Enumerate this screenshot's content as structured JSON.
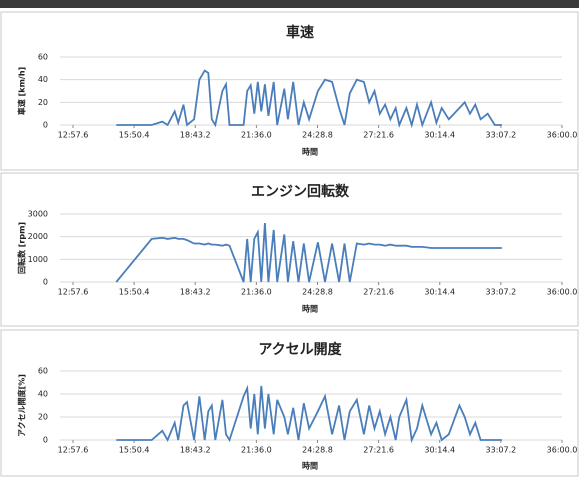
{
  "chart_data": [
    {
      "type": "line",
      "title": "車速",
      "x_label": "時間",
      "y_label": "車速 [km/h]",
      "xlim": [
        777.6,
        2160
      ],
      "ylim": [
        0,
        60
      ],
      "yticks": [
        0,
        20,
        40,
        60
      ],
      "grid": true,
      "xticks": [
        {
          "value": 777.6,
          "label": "12:57.6"
        },
        {
          "value": 950.4,
          "label": "15:50.4"
        },
        {
          "value": 1123.2,
          "label": "18:43.2"
        },
        {
          "value": 1296,
          "label": "21:36.0"
        },
        {
          "value": 1468.8,
          "label": "24:28.8"
        },
        {
          "value": 1641.6,
          "label": "27:21.6"
        },
        {
          "value": 1814.4,
          "label": "30:14.4"
        },
        {
          "value": 1987.2,
          "label": "33:07.2"
        },
        {
          "value": 2160,
          "label": "36:00.0"
        }
      ],
      "x": [
        900,
        1000,
        1030,
        1045,
        1065,
        1075,
        1090,
        1100,
        1120,
        1135,
        1150,
        1160,
        1170,
        1180,
        1200,
        1210,
        1220,
        1260,
        1270,
        1280,
        1290,
        1300,
        1310,
        1320,
        1330,
        1345,
        1355,
        1375,
        1385,
        1400,
        1415,
        1430,
        1445,
        1470,
        1490,
        1510,
        1530,
        1545,
        1560,
        1580,
        1600,
        1615,
        1630,
        1645,
        1660,
        1675,
        1690,
        1700,
        1720,
        1735,
        1750,
        1765,
        1790,
        1805,
        1820,
        1840,
        1870,
        1885,
        1900,
        1915,
        1930,
        1950,
        1970,
        1990
      ],
      "series": [
        {
          "color": "#4a7ebb",
          "values": [
            0,
            0,
            3,
            0,
            12,
            2,
            18,
            0,
            5,
            40,
            48,
            46,
            5,
            0,
            30,
            36,
            0,
            0,
            30,
            35,
            10,
            38,
            12,
            36,
            8,
            38,
            0,
            32,
            5,
            38,
            0,
            20,
            5,
            30,
            40,
            38,
            15,
            0,
            28,
            40,
            38,
            20,
            30,
            10,
            18,
            5,
            15,
            0,
            15,
            0,
            18,
            0,
            20,
            2,
            15,
            5,
            15,
            20,
            10,
            18,
            5,
            10,
            0,
            0
          ]
        }
      ]
    },
    {
      "type": "line",
      "title": "エンジン回転数",
      "x_label": "時間",
      "y_label": "回転数 [rpm]",
      "xlim": [
        777.6,
        2160
      ],
      "ylim": [
        0,
        3000
      ],
      "yticks": [
        0,
        1000,
        2000,
        3000
      ],
      "grid": true,
      "xticks": [
        {
          "value": 777.6,
          "label": "12:57.6"
        },
        {
          "value": 950.4,
          "label": "15:50.4"
        },
        {
          "value": 1123.2,
          "label": "18:43.2"
        },
        {
          "value": 1296,
          "label": "21:36.0"
        },
        {
          "value": 1468.8,
          "label": "24:28.8"
        },
        {
          "value": 1641.6,
          "label": "27:21.6"
        },
        {
          "value": 1814.4,
          "label": "30:14.4"
        },
        {
          "value": 1987.2,
          "label": "33:07.2"
        },
        {
          "value": 2160,
          "label": "36:00.0"
        }
      ],
      "x": [
        900,
        1000,
        1030,
        1045,
        1065,
        1075,
        1090,
        1100,
        1120,
        1135,
        1150,
        1160,
        1170,
        1180,
        1200,
        1210,
        1220,
        1260,
        1270,
        1280,
        1290,
        1300,
        1310,
        1320,
        1330,
        1345,
        1355,
        1375,
        1385,
        1400,
        1415,
        1430,
        1445,
        1470,
        1490,
        1510,
        1530,
        1545,
        1560,
        1580,
        1600,
        1615,
        1630,
        1645,
        1660,
        1675,
        1690,
        1700,
        1720,
        1735,
        1750,
        1765,
        1790,
        1805,
        1820,
        1840,
        1870,
        1885,
        1900,
        1915,
        1930,
        1950,
        1970,
        1990
      ],
      "series": [
        {
          "color": "#4a7ebb",
          "values": [
            0,
            1900,
            1950,
            1900,
            1950,
            1900,
            1900,
            1850,
            1700,
            1700,
            1650,
            1700,
            1650,
            1650,
            1600,
            1650,
            1600,
            0,
            1900,
            0,
            1900,
            2200,
            0,
            2600,
            0,
            2300,
            0,
            2100,
            0,
            1800,
            0,
            1700,
            0,
            1750,
            0,
            1700,
            0,
            1700,
            0,
            1700,
            1650,
            1700,
            1650,
            1650,
            1600,
            1650,
            1600,
            1600,
            1600,
            1550,
            1550,
            1550,
            1500,
            1500,
            1500,
            1500,
            1500,
            1500,
            1500,
            1500,
            1500,
            1500,
            1500,
            1500
          ]
        }
      ]
    },
    {
      "type": "line",
      "title": "アクセル開度",
      "x_label": "時間",
      "y_label": "アクセル開度[%]",
      "xlim": [
        777.6,
        2160
      ],
      "ylim": [
        0,
        60
      ],
      "yticks": [
        0,
        20,
        40,
        60
      ],
      "grid": true,
      "xticks": [
        {
          "value": 777.6,
          "label": "12:57.6"
        },
        {
          "value": 950.4,
          "label": "15:50.4"
        },
        {
          "value": 1123.2,
          "label": "18:43.2"
        },
        {
          "value": 1296,
          "label": "21:36.0"
        },
        {
          "value": 1468.8,
          "label": "24:28.8"
        },
        {
          "value": 1641.6,
          "label": "27:21.6"
        },
        {
          "value": 1814.4,
          "label": "30:14.4"
        },
        {
          "value": 1987.2,
          "label": "33:07.2"
        },
        {
          "value": 2160,
          "label": "36:00.0"
        }
      ],
      "x": [
        900,
        1000,
        1030,
        1045,
        1065,
        1075,
        1090,
        1100,
        1120,
        1135,
        1150,
        1160,
        1170,
        1180,
        1200,
        1210,
        1220,
        1260,
        1270,
        1280,
        1290,
        1300,
        1310,
        1320,
        1330,
        1345,
        1355,
        1375,
        1385,
        1400,
        1415,
        1430,
        1445,
        1470,
        1490,
        1510,
        1530,
        1545,
        1560,
        1580,
        1600,
        1615,
        1630,
        1645,
        1660,
        1675,
        1690,
        1700,
        1720,
        1735,
        1750,
        1765,
        1790,
        1805,
        1820,
        1840,
        1870,
        1885,
        1900,
        1915,
        1930,
        1950,
        1970,
        1990
      ],
      "series": [
        {
          "color": "#4a7ebb",
          "values": [
            0,
            0,
            8,
            0,
            15,
            0,
            30,
            33,
            0,
            38,
            0,
            25,
            30,
            0,
            35,
            5,
            0,
            38,
            45,
            10,
            40,
            5,
            47,
            10,
            40,
            5,
            35,
            20,
            5,
            28,
            0,
            32,
            10,
            25,
            38,
            5,
            30,
            0,
            25,
            35,
            5,
            30,
            10,
            25,
            5,
            20,
            0,
            20,
            35,
            0,
            10,
            30,
            5,
            15,
            0,
            5,
            30,
            20,
            5,
            15,
            0,
            0,
            0,
            0
          ]
        }
      ]
    }
  ]
}
